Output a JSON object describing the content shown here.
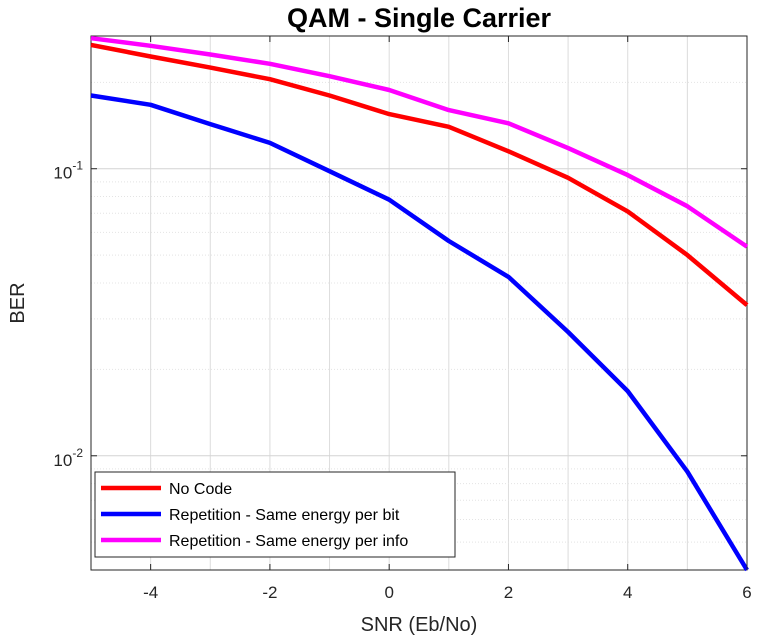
{
  "chart_data": {
    "type": "line",
    "title": "QAM - Single Carrier",
    "xlabel": "SNR (Eb/No)",
    "ylabel": "BER",
    "xlim": [
      -5,
      6
    ],
    "ylim": [
      0.004,
      0.29
    ],
    "yscale": "log",
    "grid": true,
    "minor_grid": true,
    "legend_position": "bottom-left",
    "x": [
      -5,
      -4,
      -3,
      -2,
      -1,
      0,
      1,
      2,
      3,
      4,
      5,
      6
    ],
    "x_ticks": [
      -4,
      -2,
      0,
      2,
      4,
      6
    ],
    "x_tick_labels": [
      "-4",
      "-2",
      "0",
      "2",
      "4",
      "6"
    ],
    "y_ticks": [
      0.01,
      0.1
    ],
    "y_tick_labels": [
      {
        "base": "10",
        "exp": "-2"
      },
      {
        "base": "10",
        "exp": "-1"
      }
    ],
    "series": [
      {
        "name": "No Code",
        "color": "#ff0000",
        "values": [
          0.27,
          0.246,
          0.225,
          0.205,
          0.18,
          0.155,
          0.14,
          0.115,
          0.093,
          0.071,
          0.05,
          0.0335
        ]
      },
      {
        "name": "Repetition - Same energy per bit",
        "color": "#0000ff",
        "values": [
          0.18,
          0.167,
          0.143,
          0.123,
          0.098,
          0.078,
          0.056,
          0.042,
          0.027,
          0.0168,
          0.0088,
          0.004
        ]
      },
      {
        "name": "Repetition - Same energy per info",
        "color": "#ff00ff",
        "values": [
          0.285,
          0.268,
          0.25,
          0.232,
          0.21,
          0.188,
          0.16,
          0.144,
          0.118,
          0.095,
          0.074,
          0.0535
        ]
      }
    ]
  }
}
